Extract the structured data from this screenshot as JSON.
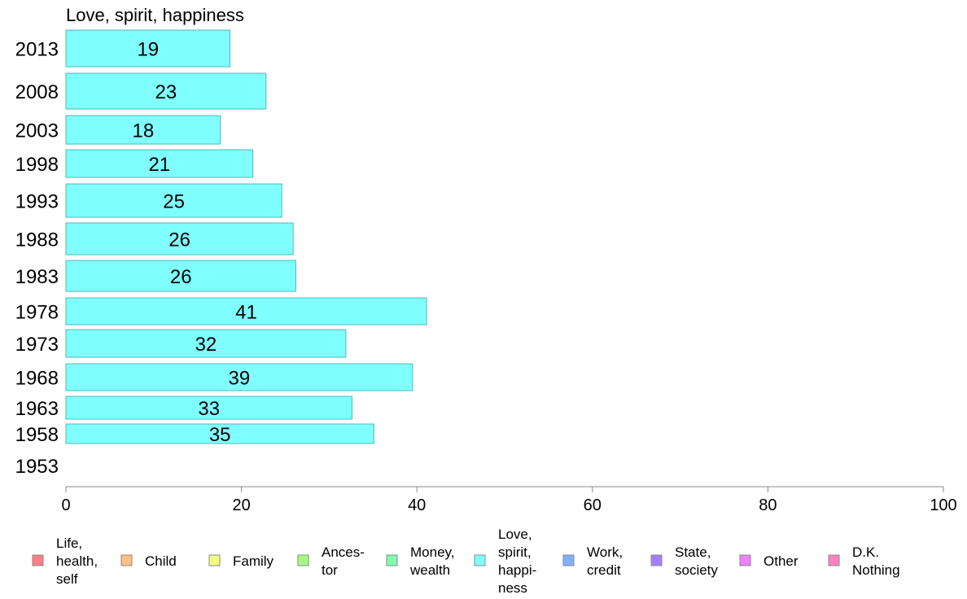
{
  "chart_data": {
    "type": "bar",
    "orientation": "horizontal",
    "title": "Love, spirit, happiness",
    "categories": [
      "2013",
      "2008",
      "2003",
      "1998",
      "1993",
      "1988",
      "1983",
      "1978",
      "1973",
      "1968",
      "1963",
      "1958",
      "1953"
    ],
    "values": [
      18.7,
      22.8,
      17.6,
      21.3,
      24.6,
      25.9,
      26.2,
      41.1,
      31.9,
      39.5,
      32.6,
      35.1,
      null
    ],
    "value_labels": [
      "19",
      "23",
      "18",
      "21",
      "25",
      "26",
      "26",
      "41",
      "32",
      "39",
      "33",
      "35",
      ""
    ],
    "xlim": [
      0,
      100
    ],
    "xticks": [
      0,
      20,
      40,
      60,
      80,
      100
    ],
    "grid": false,
    "bar_color": "#80ffff",
    "bar_edge_color": "#4fb8b8",
    "legend": {
      "position": "bottom",
      "entries": [
        {
          "lines": [
            "Life,",
            "health,",
            "self"
          ],
          "color": "#ff8080"
        },
        {
          "lines": [
            "Child"
          ],
          "color": "#ffc080"
        },
        {
          "lines": [
            "Family"
          ],
          "color": "#f0ff80"
        },
        {
          "lines": [
            "Ances-",
            "tor"
          ],
          "color": "#a0ff80"
        },
        {
          "lines": [
            "Money,",
            "wealth"
          ],
          "color": "#80ffb0"
        },
        {
          "lines": [
            "Love,",
            "spirit,",
            "happi-",
            "ness"
          ],
          "color": "#80ffff"
        },
        {
          "lines": [
            "Work,",
            "credit"
          ],
          "color": "#80b0ff"
        },
        {
          "lines": [
            "State,",
            "society"
          ],
          "color": "#a080ff"
        },
        {
          "lines": [
            "Other"
          ],
          "color": "#f080ff"
        },
        {
          "lines": [
            "D.K.",
            "Nothing"
          ],
          "color": "#ff80c0"
        }
      ]
    }
  }
}
